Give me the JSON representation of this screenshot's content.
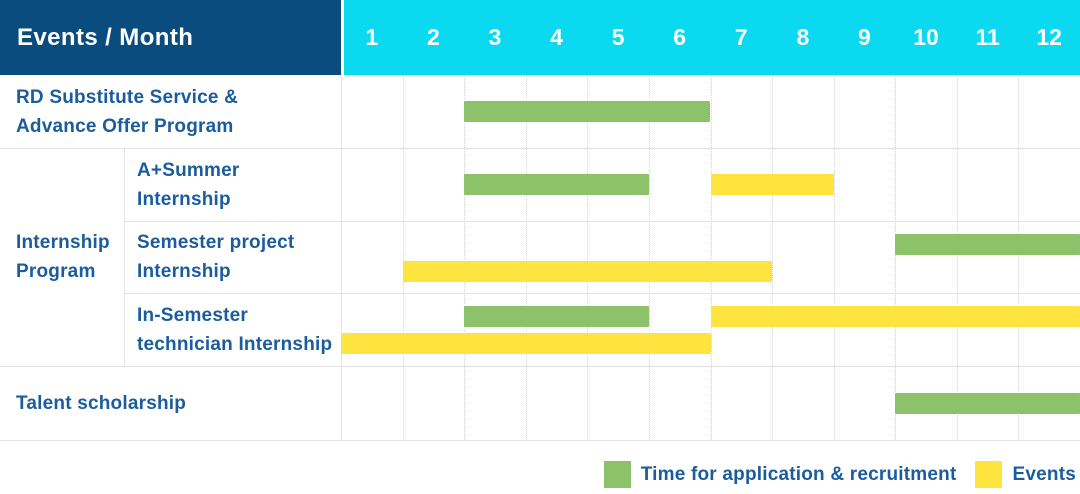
{
  "header": {
    "title": "Events / Month"
  },
  "colors": {
    "header_bg": "#0b4c7e",
    "months_bg": "#0bd9f0",
    "header_text": "#ffffff",
    "label_text": "#1b5c9e",
    "application_green": "#8cc269",
    "events_yellow": "#ffe440",
    "grid_line": "#e3e3e3",
    "month_divider": "#d6d6d6"
  },
  "chart_data": {
    "type": "bar",
    "subtype": "gantt-timeline",
    "title": "Events / Month",
    "x_axis": {
      "label": "Month",
      "ticks": [
        "1",
        "2",
        "3",
        "4",
        "5",
        "6",
        "7",
        "8",
        "9",
        "10",
        "11",
        "12"
      ],
      "range": [
        1,
        12
      ]
    },
    "grid": "vertical-month-dividers",
    "group_label": "Internship\nProgram",
    "rows": [
      {
        "group": null,
        "label": "RD Substitute Service &\nAdvance Offer Program",
        "bars": [
          {
            "series": "Time for application & recruitment",
            "start_month": 3,
            "end_month": 6,
            "lane": "single"
          }
        ]
      },
      {
        "group": "Internship Program",
        "label": "A+Summer\nInternship",
        "bars": [
          {
            "series": "Time for application & recruitment",
            "start_month": 3,
            "end_month": 5,
            "lane": "single"
          },
          {
            "series": "Events",
            "start_month": 7,
            "end_month": 8,
            "lane": "single"
          }
        ]
      },
      {
        "group": "Internship Program",
        "label": "Semester project\nInternship",
        "bars": [
          {
            "series": "Time for application & recruitment",
            "start_month": 10,
            "end_month": 12,
            "lane": "upper"
          },
          {
            "series": "Events",
            "start_month": 2,
            "end_month": 7,
            "lane": "lower"
          }
        ]
      },
      {
        "group": "Internship Program",
        "label": "In-Semester\ntechnician Internship",
        "bars": [
          {
            "series": "Time for application & recruitment",
            "start_month": 3,
            "end_month": 5,
            "lane": "upper"
          },
          {
            "series": "Events",
            "start_month": 7,
            "end_month": 12,
            "lane": "upper"
          },
          {
            "series": "Events",
            "start_month": 1,
            "end_month": 6,
            "lane": "lower"
          }
        ]
      },
      {
        "group": null,
        "label": "Talent scholarship",
        "bars": [
          {
            "series": "Time for application & recruitment",
            "start_month": 10,
            "end_month": 12,
            "lane": "single"
          }
        ]
      }
    ],
    "legend": [
      {
        "label": "Time for application & recruitment",
        "color": "#8cc269"
      },
      {
        "label": "Events",
        "color": "#ffe440"
      }
    ],
    "legend_position": "bottom-right"
  }
}
